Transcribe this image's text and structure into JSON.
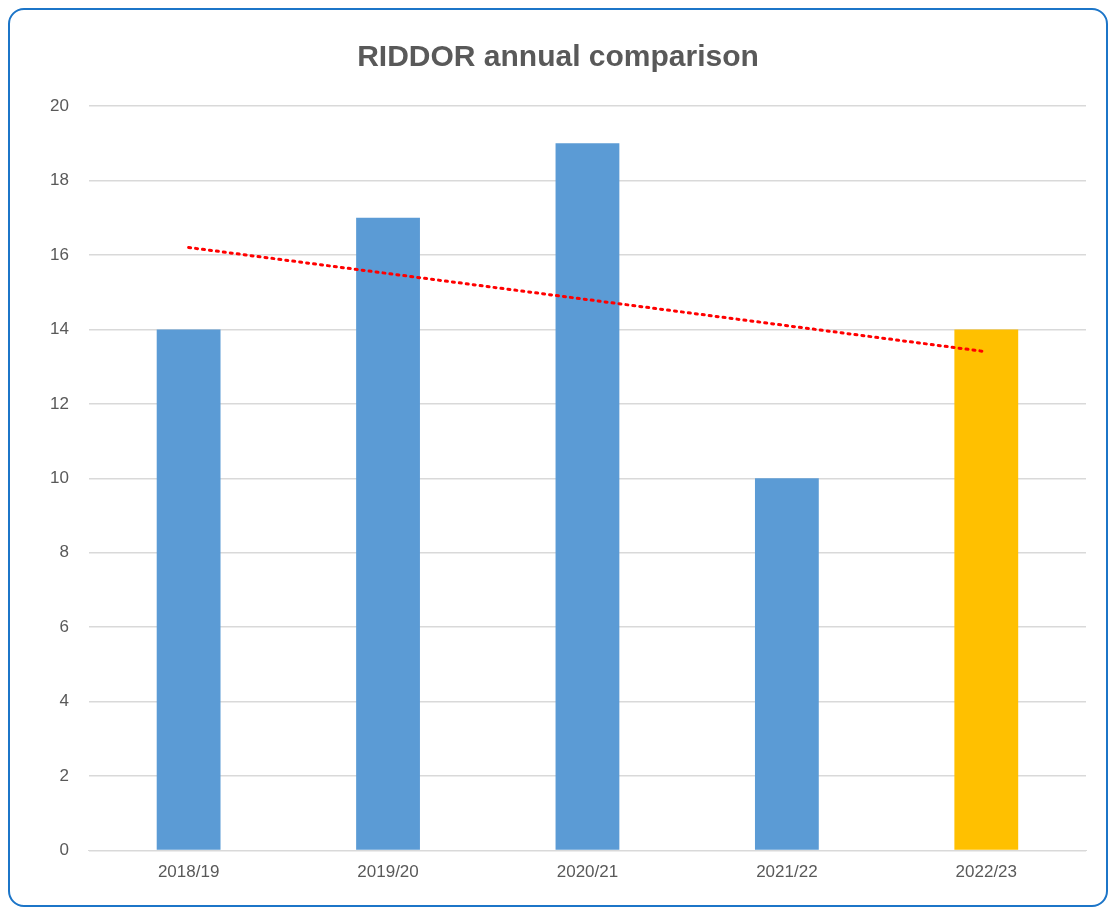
{
  "chart_data": {
    "type": "bar",
    "title": "RIDDOR annual comparison",
    "categories": [
      "2018/19",
      "2019/20",
      "2020/21",
      "2021/22",
      "2022/23"
    ],
    "series": [
      {
        "values": [
          14,
          17,
          19,
          10,
          14
        ],
        "colors": [
          "#5b9bd5",
          "#5b9bd5",
          "#5b9bd5",
          "#5b9bd5",
          "#ffc000"
        ]
      },
      {
        "type": "line",
        "x": [
          "2018/19",
          "2022/23"
        ],
        "values": [
          16.2,
          13.4
        ],
        "color": "#ff0000",
        "line_style": "dotted",
        "marker": "none"
      }
    ],
    "ylim": [
      0,
      20
    ],
    "yticks": [
      0,
      2,
      4,
      6,
      8,
      10,
      12,
      14,
      16,
      18,
      20
    ],
    "grid": "y",
    "legend": false
  }
}
